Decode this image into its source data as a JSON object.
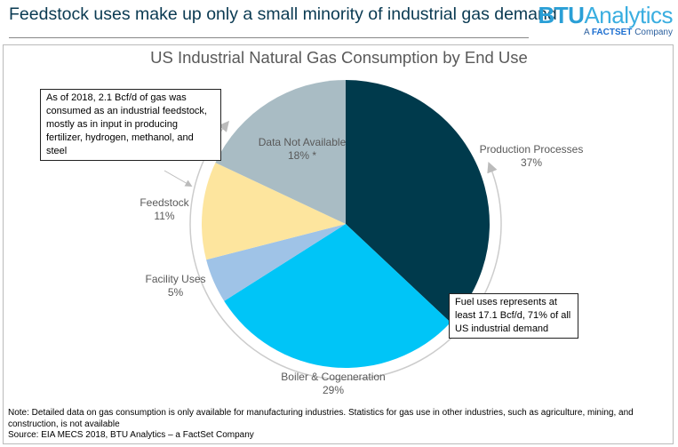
{
  "headline": "Feedstock uses make up only a small minority of industrial gas demand",
  "logo": {
    "main_bold": "BTU",
    "main_rest": "Analytics",
    "sub_a": "A ",
    "sub_brand": "FACTSET",
    "sub_rest": " Company"
  },
  "chart_data": {
    "type": "pie",
    "title": "US Industrial Natural Gas Consumption by End Use",
    "start": "top",
    "direction": "clockwise",
    "slices": [
      {
        "name": "Production Processes",
        "value": 37,
        "label": "37%",
        "color": "#003a4c"
      },
      {
        "name": "Boiler & Cogeneration",
        "value": 29,
        "label": "29%",
        "color": "#00c5f7"
      },
      {
        "name": "Facility Uses",
        "value": 5,
        "label": "5%",
        "color": "#9fc3e7"
      },
      {
        "name": "Feedstock",
        "value": 11,
        "label": "11%",
        "color": "#fde59e"
      },
      {
        "name": "Data Not Available",
        "value": 18,
        "label": "18% *",
        "color": "#a9bcc4"
      }
    ]
  },
  "annotations": {
    "feedstock": "As of 2018, 2.1 Bcf/d of gas was consumed as an industrial feedstock, mostly as in input in producing fertilizer, hydrogen, methanol, and steel",
    "fuel": "Fuel uses represents at least 17.1 Bcf/d, 71% of all US industrial demand"
  },
  "note": "Note: Detailed data on gas consumption is only available for manufacturing industries. Statistics for gas use in other industries, such as agriculture, mining, and construction, is not available",
  "source": "Source: EIA MECS 2018, BTU Analytics – a FactSet Company"
}
